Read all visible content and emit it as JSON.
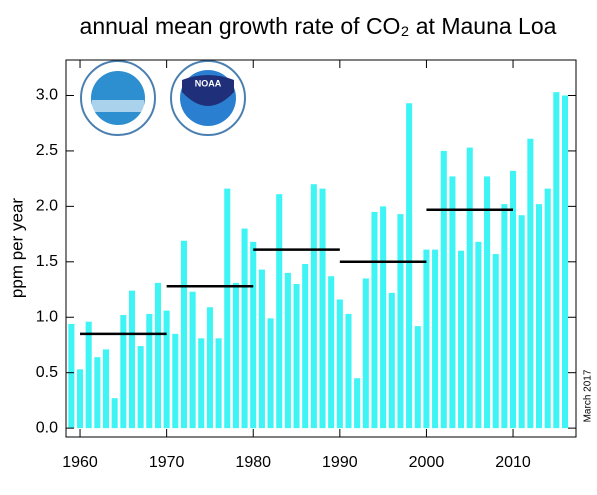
{
  "chart_data": {
    "type": "bar",
    "title": "annual mean growth rate of CO₂ at Mauna Loa",
    "y_label": "ppm per year",
    "annotation": "March 2017",
    "logo_text": "NOAA",
    "color": "#3ff4f4",
    "x": [
      1959,
      1960,
      1961,
      1962,
      1963,
      1964,
      1965,
      1966,
      1967,
      1968,
      1969,
      1970,
      1971,
      1972,
      1973,
      1974,
      1975,
      1976,
      1977,
      1978,
      1979,
      1980,
      1981,
      1982,
      1983,
      1984,
      1985,
      1986,
      1987,
      1988,
      1989,
      1990,
      1991,
      1992,
      1993,
      1994,
      1995,
      1996,
      1997,
      1998,
      1999,
      2000,
      2001,
      2002,
      2003,
      2004,
      2005,
      2006,
      2007,
      2008,
      2009,
      2010,
      2011,
      2012,
      2013,
      2014,
      2015,
      2016
    ],
    "values": [
      0.94,
      0.53,
      0.96,
      0.64,
      0.71,
      0.27,
      1.02,
      1.24,
      0.74,
      1.03,
      1.31,
      1.06,
      0.85,
      1.69,
      1.23,
      0.81,
      1.09,
      0.81,
      2.16,
      1.31,
      1.8,
      1.68,
      1.43,
      0.99,
      2.11,
      1.4,
      1.3,
      1.48,
      2.2,
      2.16,
      1.37,
      1.16,
      1.03,
      0.45,
      1.35,
      1.95,
      2.0,
      1.22,
      1.93,
      2.93,
      0.92,
      1.61,
      1.61,
      2.5,
      2.27,
      1.6,
      2.53,
      1.68,
      2.27,
      1.57,
      2.02,
      2.32,
      1.92,
      2.61,
      2.02,
      2.16,
      3.03,
      3.0
    ],
    "decade_means": [
      {
        "x": [
          1960,
          1970
        ],
        "value": 0.85
      },
      {
        "x": [
          1970,
          1980
        ],
        "value": 1.28
      },
      {
        "x": [
          1980,
          1990
        ],
        "value": 1.61
      },
      {
        "x": [
          1990,
          2000
        ],
        "value": 1.5
      },
      {
        "x": [
          2000,
          2010
        ],
        "value": 1.97
      }
    ],
    "xlim": [
      1958.38,
      2017.27
    ],
    "xticks": [
      1960,
      1970,
      1980,
      1990,
      2000,
      2010
    ],
    "ylim": [
      -0.08,
      3.32
    ],
    "yticks": [
      {
        "value": 0,
        "label": "0.0"
      },
      {
        "value": 0.5,
        "label": "0.5"
      },
      {
        "value": 1,
        "label": "1.0"
      },
      {
        "value": 1.5,
        "label": "1.5"
      },
      {
        "value": 2,
        "label": "2.0"
      },
      {
        "value": 2.5,
        "label": "2.5"
      },
      {
        "value": 3,
        "label": "3.0"
      }
    ]
  }
}
